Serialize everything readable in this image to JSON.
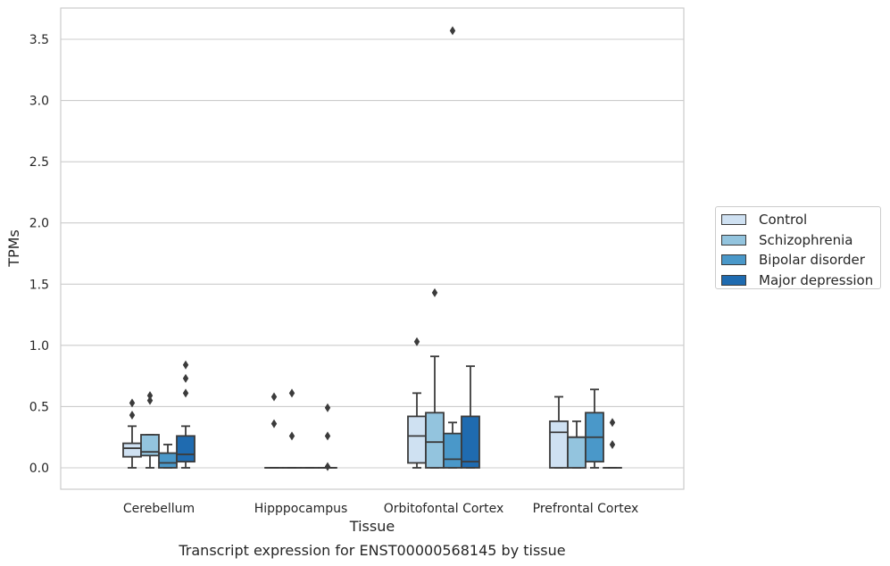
{
  "chart_data": {
    "type": "box",
    "title": "",
    "xlabel": "Tissue",
    "ylabel": "TPMs",
    "caption": "Transcript expression for ENST00000568145 by tissue",
    "ylim": [
      -0.17,
      3.76
    ],
    "yticks": [
      "0.0",
      "0.5",
      "1.0",
      "1.5",
      "2.0",
      "2.5",
      "3.0",
      "3.5"
    ],
    "categories": [
      "Cerebellum",
      "Hipppocampus",
      "Orbitofontal Cortex",
      "Prefrontal Cortex"
    ],
    "grid": "horizontal",
    "legend_position": "right",
    "series": [
      {
        "name": "Control",
        "color": "#cfe1f2",
        "boxes": [
          {
            "q1": 0.09,
            "median": 0.16,
            "q3": 0.2,
            "whisker_low": 0.0,
            "whisker_high": 0.34,
            "outliers": [
              0.43,
              0.53
            ]
          },
          {
            "q1": 0.0,
            "median": 0.0,
            "q3": 0.0,
            "whisker_low": 0.0,
            "whisker_high": 0.0,
            "outliers": [
              0.36,
              0.58
            ]
          },
          {
            "q1": 0.04,
            "median": 0.26,
            "q3": 0.42,
            "whisker_low": 0.0,
            "whisker_high": 0.61,
            "outliers": [
              1.03
            ]
          },
          {
            "q1": 0.0,
            "median": 0.29,
            "q3": 0.38,
            "whisker_low": 0.0,
            "whisker_high": 0.58,
            "outliers": []
          }
        ]
      },
      {
        "name": "Schizophrenia",
        "color": "#93c4de",
        "boxes": [
          {
            "q1": 0.1,
            "median": 0.13,
            "q3": 0.27,
            "whisker_low": 0.0,
            "whisker_high": 0.27,
            "outliers": [
              0.55,
              0.59
            ]
          },
          {
            "q1": 0.0,
            "median": 0.0,
            "q3": 0.0,
            "whisker_low": 0.0,
            "whisker_high": 0.0,
            "outliers": [
              0.26,
              0.61
            ]
          },
          {
            "q1": 0.0,
            "median": 0.21,
            "q3": 0.45,
            "whisker_low": 0.0,
            "whisker_high": 0.91,
            "outliers": [
              1.43
            ]
          },
          {
            "q1": 0.0,
            "median": 0.25,
            "q3": 0.25,
            "whisker_low": 0.0,
            "whisker_high": 0.38,
            "outliers": []
          }
        ]
      },
      {
        "name": "Bipolar disorder",
        "color": "#4a98c9",
        "boxes": [
          {
            "q1": 0.0,
            "median": 0.04,
            "q3": 0.12,
            "whisker_low": 0.0,
            "whisker_high": 0.19,
            "outliers": []
          },
          {
            "q1": 0.0,
            "median": 0.0,
            "q3": 0.0,
            "whisker_low": 0.0,
            "whisker_high": 0.0,
            "outliers": []
          },
          {
            "q1": 0.0,
            "median": 0.07,
            "q3": 0.28,
            "whisker_low": 0.0,
            "whisker_high": 0.37,
            "outliers": [
              3.57
            ]
          },
          {
            "q1": 0.05,
            "median": 0.25,
            "q3": 0.45,
            "whisker_low": 0.0,
            "whisker_high": 0.64,
            "outliers": []
          }
        ]
      },
      {
        "name": "Major depression",
        "color": "#1f6bb0",
        "boxes": [
          {
            "q1": 0.05,
            "median": 0.11,
            "q3": 0.26,
            "whisker_low": 0.0,
            "whisker_high": 0.34,
            "outliers": [
              0.61,
              0.73,
              0.84
            ]
          },
          {
            "q1": 0.0,
            "median": 0.0,
            "q3": 0.0,
            "whisker_low": 0.0,
            "whisker_high": 0.0,
            "outliers": [
              0.01,
              0.26,
              0.49
            ]
          },
          {
            "q1": 0.0,
            "median": 0.05,
            "q3": 0.42,
            "whisker_low": 0.0,
            "whisker_high": 0.83,
            "outliers": []
          },
          {
            "q1": 0.0,
            "median": 0.0,
            "q3": 0.0,
            "whisker_low": 0.0,
            "whisker_high": 0.0,
            "outliers": [
              0.19,
              0.37
            ]
          }
        ]
      }
    ]
  }
}
